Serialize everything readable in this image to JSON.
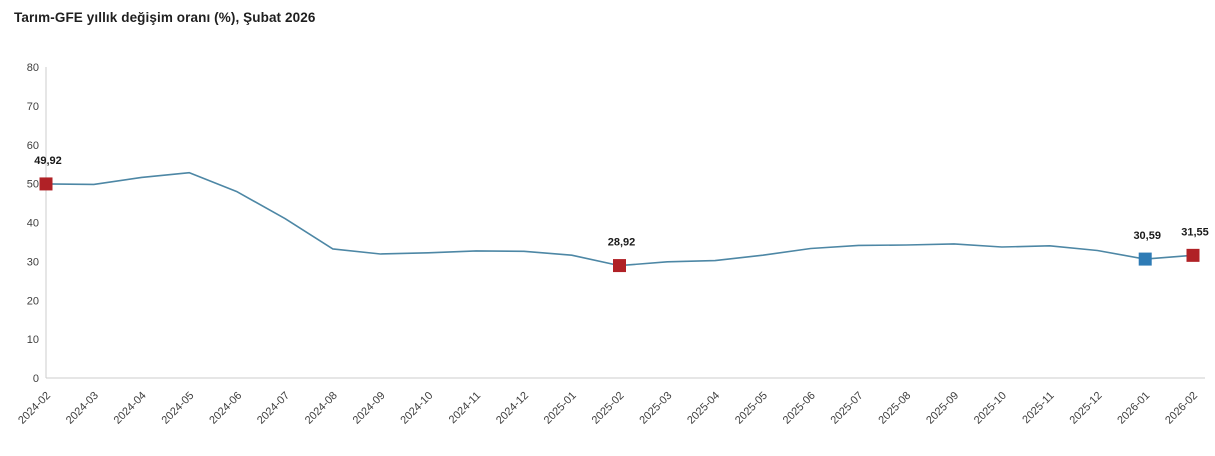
{
  "title": "Tarım-GFE yıllık değişim oranı (%), Şubat 2026",
  "colors": {
    "line": "#4d87a5",
    "marker_red": "#b02126",
    "marker_blue": "#2e7bb5",
    "axis": "#cccccc",
    "tick_text": "#3f3f3f",
    "data_label_text": "#1a1a1a",
    "title_text": "#1f1f1f"
  },
  "chart_data": {
    "type": "line",
    "title": "Tarım-GFE yıllık değişim oranı (%), Şubat 2026",
    "xlabel": "",
    "ylabel": "",
    "ylim": [
      0,
      80
    ],
    "ytick_step": 10,
    "grid": false,
    "legend": false,
    "categories": [
      "2024-02",
      "2024-03",
      "2024-04",
      "2024-05",
      "2024-06",
      "2024-07",
      "2024-08",
      "2024-09",
      "2024-10",
      "2024-11",
      "2024-12",
      "2025-01",
      "2025-02",
      "2025-03",
      "2025-04",
      "2025-05",
      "2025-06",
      "2025-07",
      "2025-08",
      "2025-09",
      "2025-10",
      "2025-11",
      "2025-12",
      "2026-01",
      "2026-02"
    ],
    "series": [
      {
        "name": "Tarım-GFE yıllık değişim oranı (%)",
        "values": [
          49.92,
          49.8,
          51.6,
          52.8,
          47.9,
          41.0,
          33.2,
          31.9,
          32.2,
          32.7,
          32.6,
          31.6,
          28.92,
          29.9,
          30.2,
          31.6,
          33.3,
          34.1,
          34.2,
          34.5,
          33.7,
          34.0,
          32.8,
          30.59,
          31.55
        ]
      }
    ],
    "highlight_points": [
      {
        "category": "2024-02",
        "value": 49.92,
        "label": "49,92",
        "color": "#b02126"
      },
      {
        "category": "2025-02",
        "value": 28.92,
        "label": "28,92",
        "color": "#b02126"
      },
      {
        "category": "2026-01",
        "value": 30.59,
        "label": "30,59",
        "color": "#2e7bb5"
      },
      {
        "category": "2026-02",
        "value": 31.55,
        "label": "31,55",
        "color": "#b02126"
      }
    ]
  }
}
